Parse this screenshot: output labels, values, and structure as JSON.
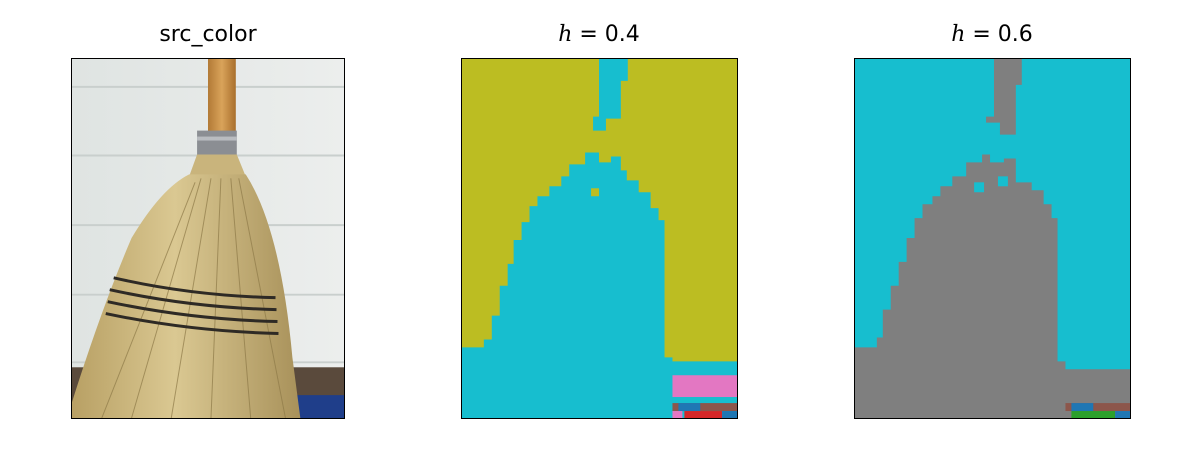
{
  "panels": [
    {
      "title": "src_color",
      "kind": "photo"
    },
    {
      "title_var": "h",
      "title_rest": " = 0.4",
      "kind": "segmentation",
      "colors": {
        "background": "#bcbd22",
        "object": "#17becf",
        "patch_a": "#e377c2",
        "patch_b": "#8c564b",
        "patch_c": "#d62728",
        "patch_d": "#1f77b4"
      }
    },
    {
      "title_var": "h",
      "title_rest": " = 0.6",
      "kind": "segmentation",
      "colors": {
        "background": "#17becf",
        "object": "#7f7f7f",
        "patch_a": "#2ca02c",
        "patch_b": "#8c564b",
        "patch_c": "#1f77b4"
      }
    }
  ]
}
